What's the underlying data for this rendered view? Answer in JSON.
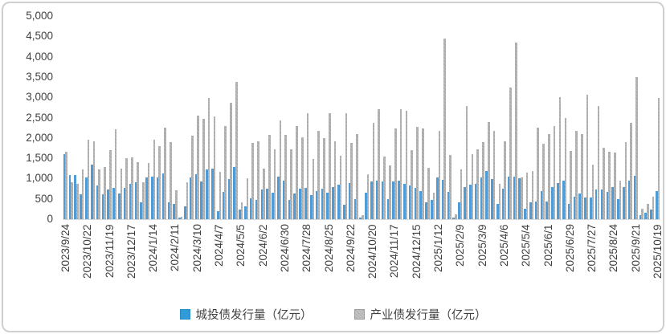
{
  "chart": {
    "y_axis": {
      "ticks": [
        "5,000",
        "4,500",
        "4,000",
        "3,500",
        "3,000",
        "2,500",
        "2,000",
        "1,500",
        "1,000",
        "500",
        "0"
      ]
    },
    "x_axis": {
      "tick_labels": [
        "2023/9/24",
        "2023/10/22",
        "2023/11/19",
        "2023/12/17",
        "2024/1/14",
        "2024/2/11",
        "2024/3/10",
        "2024/4/7",
        "2024/5/5",
        "2024/6/2",
        "2024/6/30",
        "2024/7/28",
        "2024/8/25",
        "2024/9/22",
        "2024/10/20",
        "2024/11/17",
        "2024/12/15",
        "2025/1/12",
        "2025/2/9",
        "2025/3/9",
        "2025/4/6",
        "2025/5/4",
        "2025/6/1",
        "2025/6/29",
        "2025/7/27",
        "2025/8/24",
        "2025/9/21",
        "2025/10/19"
      ]
    },
    "legend": [
      {
        "label": "城投债发行量（亿元）",
        "color": "#2f9bd8"
      },
      {
        "label": "产业债发行量（亿元）",
        "color": "#b5b5b5"
      }
    ]
  },
  "chart_data": {
    "type": "bar",
    "title": "",
    "xlabel": "",
    "ylabel": "",
    "ylim": [
      0,
      5000
    ],
    "y_tick_step": 500,
    "grid": false,
    "legend_position": "bottom",
    "x_tick_every": 4,
    "x": [
      "2023/9/24",
      "2023/10/1",
      "2023/10/8",
      "2023/10/15",
      "2023/10/22",
      "2023/10/29",
      "2023/11/5",
      "2023/11/12",
      "2023/11/19",
      "2023/11/26",
      "2023/12/3",
      "2023/12/10",
      "2023/12/17",
      "2023/12/24",
      "2023/12/31",
      "2024/1/7",
      "2024/1/14",
      "2024/1/21",
      "2024/1/28",
      "2024/2/4",
      "2024/2/11",
      "2024/2/18",
      "2024/2/25",
      "2024/3/3",
      "2024/3/10",
      "2024/3/17",
      "2024/3/24",
      "2024/3/31",
      "2024/4/7",
      "2024/4/14",
      "2024/4/21",
      "2024/4/28",
      "2024/5/5",
      "2024/5/12",
      "2024/5/19",
      "2024/5/26",
      "2024/6/2",
      "2024/6/9",
      "2024/6/16",
      "2024/6/23",
      "2024/6/30",
      "2024/7/7",
      "2024/7/14",
      "2024/7/21",
      "2024/7/28",
      "2024/8/4",
      "2024/8/11",
      "2024/8/18",
      "2024/8/25",
      "2024/9/1",
      "2024/9/8",
      "2024/9/15",
      "2024/9/22",
      "2024/9/29",
      "2024/10/6",
      "2024/10/13",
      "2024/10/20",
      "2024/10/27",
      "2024/11/3",
      "2024/11/10",
      "2024/11/17",
      "2024/11/24",
      "2024/12/1",
      "2024/12/8",
      "2024/12/15",
      "2024/12/22",
      "2024/12/29",
      "2025/1/5",
      "2025/1/12",
      "2025/1/19",
      "2025/1/26",
      "2025/2/2",
      "2025/2/9",
      "2025/2/16",
      "2025/2/23",
      "2025/3/2",
      "2025/3/9",
      "2025/3/16",
      "2025/3/23",
      "2025/3/30",
      "2025/4/6",
      "2025/4/13",
      "2025/4/20",
      "2025/4/27",
      "2025/5/4",
      "2025/5/11",
      "2025/5/18",
      "2025/5/25",
      "2025/6/1",
      "2025/6/8",
      "2025/6/15",
      "2025/6/22",
      "2025/6/29",
      "2025/7/6",
      "2025/7/13",
      "2025/7/20",
      "2025/7/27",
      "2025/8/3",
      "2025/8/10",
      "2025/8/17",
      "2025/8/24",
      "2025/8/31",
      "2025/9/7",
      "2025/9/14",
      "2025/9/21",
      "2025/9/28",
      "2025/10/5",
      "2025/10/12",
      "2025/10/19"
    ],
    "series": [
      {
        "name": "城投债发行量（亿元）",
        "color": "#4f9bd5",
        "values": [
          1600,
          1090,
          1090,
          620,
          1020,
          1350,
          830,
          620,
          730,
          780,
          630,
          770,
          870,
          910,
          420,
          1020,
          1050,
          1020,
          1130,
          420,
          380,
          30,
          310,
          1020,
          1110,
          930,
          1230,
          1250,
          200,
          670,
          980,
          1280,
          230,
          310,
          510,
          480,
          730,
          750,
          650,
          1050,
          950,
          470,
          630,
          750,
          770,
          600,
          700,
          750,
          650,
          800,
          850,
          350,
          880,
          500,
          30,
          650,
          920,
          950,
          930,
          500,
          930,
          940,
          870,
          830,
          780,
          700,
          420,
          480,
          1020,
          970,
          680,
          30,
          420,
          800,
          850,
          870,
          1020,
          1180,
          980,
          380,
          750,
          1050,
          1050,
          1000,
          250,
          420,
          430,
          700,
          440,
          800,
          890,
          950,
          370,
          560,
          630,
          540,
          540,
          730,
          740,
          670,
          790,
          500,
          800,
          950,
          1060,
          100,
          160,
          230,
          690
        ]
      },
      {
        "name": "产业债发行量（亿元）",
        "color": "#ababab",
        "values": [
          1660,
          910,
          870,
          1230,
          1950,
          1920,
          1220,
          1280,
          1700,
          2210,
          1250,
          1500,
          1530,
          1400,
          910,
          1380,
          1950,
          1790,
          2250,
          1900,
          720,
          60,
          900,
          2050,
          2550,
          2470,
          2990,
          2530,
          1170,
          2290,
          2870,
          3370,
          410,
          1000,
          1870,
          1910,
          1250,
          2080,
          1710,
          2430,
          2070,
          1710,
          2300,
          2020,
          2610,
          1490,
          2180,
          2000,
          2610,
          1910,
          1570,
          2600,
          1880,
          2100,
          90,
          1100,
          2370,
          2700,
          1540,
          1320,
          2230,
          2700,
          2670,
          1700,
          2270,
          2230,
          1270,
          650,
          2170,
          4450,
          1590,
          110,
          1230,
          2780,
          1610,
          1710,
          1900,
          2390,
          2170,
          870,
          1910,
          3250,
          4350,
          1020,
          1150,
          1180,
          2250,
          1850,
          2100,
          2300,
          3010,
          2500,
          1690,
          2170,
          2100,
          3060,
          1340,
          2790,
          1760,
          1660,
          1640,
          950,
          1900,
          2380,
          3500,
          250,
          380,
          560,
          2990
        ]
      }
    ]
  }
}
